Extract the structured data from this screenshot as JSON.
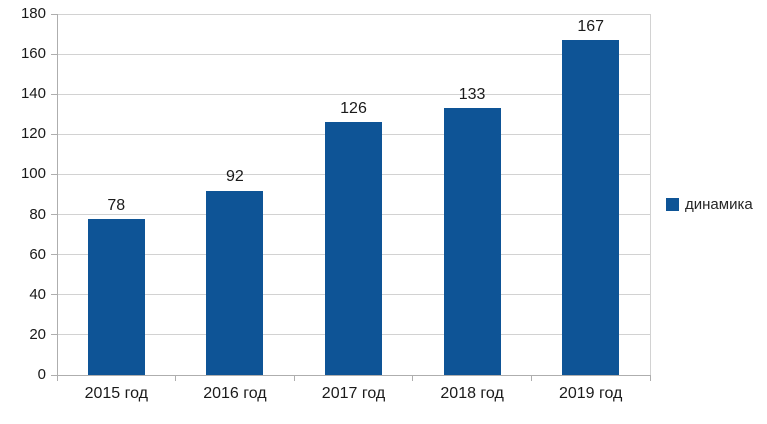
{
  "chart_data": {
    "type": "bar",
    "title": "",
    "categories": [
      "2015 год",
      "2016 год",
      "2017 год",
      "2018 год",
      "2019 год"
    ],
    "series": [
      {
        "name": "динамика",
        "values": [
          78,
          92,
          126,
          133,
          167
        ]
      }
    ],
    "data_labels": [
      "78",
      "92",
      "126",
      "133",
      "167"
    ],
    "xlabel": "",
    "ylabel": "",
    "ylim": [
      0,
      180
    ],
    "yticks": [
      0,
      20,
      40,
      60,
      80,
      100,
      120,
      140,
      160,
      180
    ],
    "grid": true,
    "legend_position": "right"
  },
  "legend": {
    "label": "динамика"
  },
  "colors": {
    "bar": "#0e5496",
    "grid": "#d2d2d2",
    "axis": "#aeaeae",
    "text": "#1a1a1a",
    "legend_text": "#262626",
    "background": "#ffffff"
  }
}
